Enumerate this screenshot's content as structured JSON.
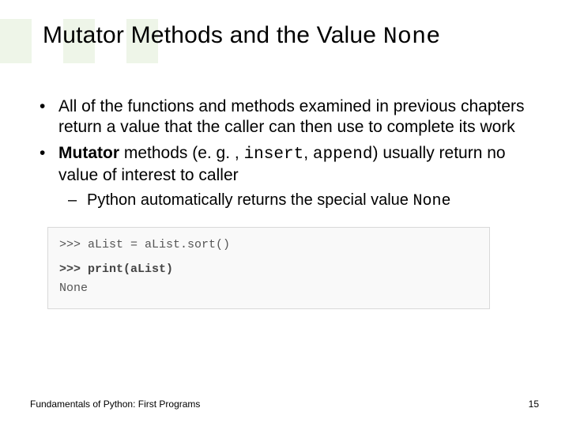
{
  "title": {
    "text_part1": "Mutator Methods and the Value ",
    "code_part": "None",
    "fontsize": 30
  },
  "bullets": [
    {
      "text": "All of the functions and methods examined in previous chapters return a value that the caller can then use to complete its work"
    },
    {
      "segments": {
        "s1_bold": "Mutator",
        "s2": " methods (e. g. , ",
        "s3_code": "insert",
        "s4": ", ",
        "s5_code": "append",
        "s6": ") usually return no value of interest to caller"
      },
      "sub": [
        {
          "s1": "Python automatically returns the special value ",
          "s2_code": "None"
        }
      ]
    }
  ],
  "code_example": {
    "line1": ">>> aList = aList.sort()",
    "line2": ">>> print(aList)",
    "line3": "None",
    "border_color": "#d9d9d9",
    "background_color": "#f9f9f9",
    "font_family": "Courier New",
    "fontsize": 15
  },
  "footer": {
    "left": "Fundamentals of Python: First Programs",
    "page": "15",
    "fontsize": 12
  },
  "styling": {
    "slide_width": 720,
    "slide_height": 540,
    "body_fontsize": 21,
    "sub_fontsize": 20,
    "text_color": "#000000",
    "background_color": "#ffffff",
    "band_color": "#eef5e8"
  }
}
